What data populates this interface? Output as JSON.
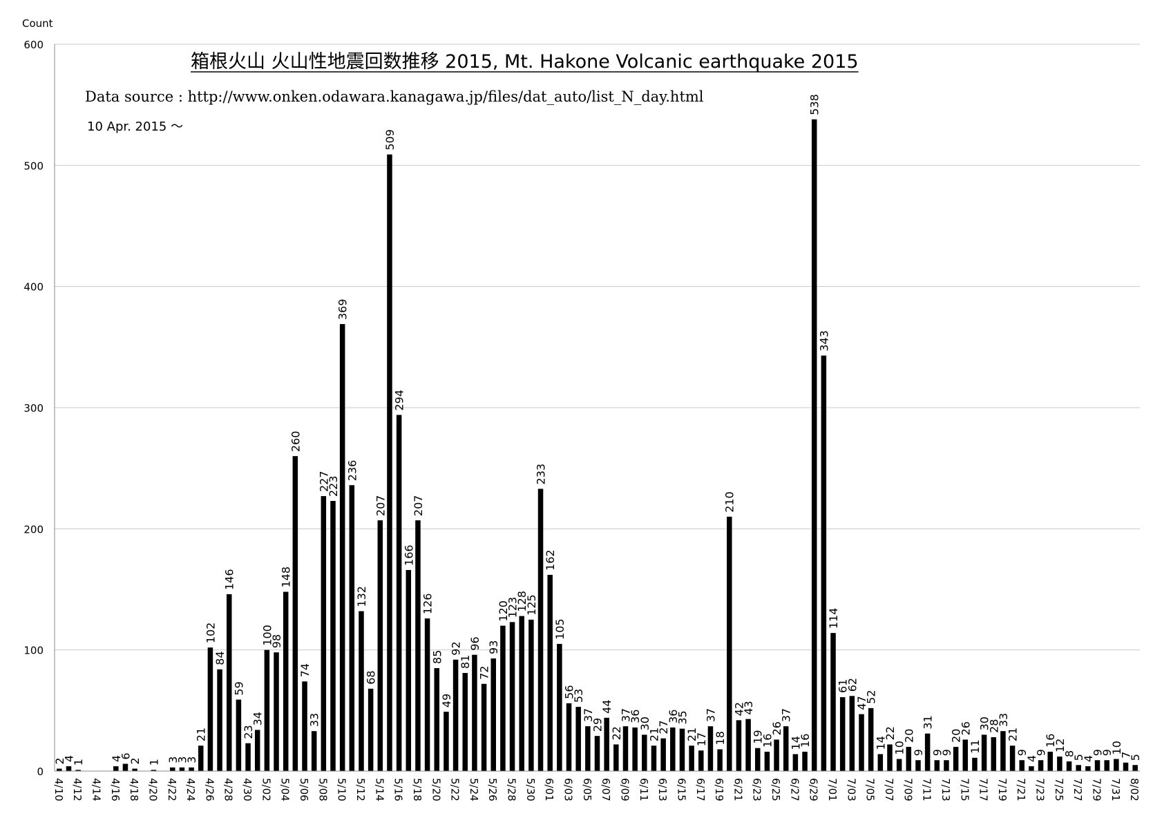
{
  "chart_data": {
    "type": "bar",
    "title": "箱根火山  火山性地震回数推移 2015, Mt. Hakone Volcanic earthquake 2015",
    "source_note": "Data source : http://www.onken.odawara.kanagawa.jp/files/dat_auto/list_N_day.html",
    "date_note": "10 Apr. 2015 ～",
    "ylabel": "Count",
    "xlabel": "",
    "ylim": [
      0,
      600
    ],
    "y_ticks": [
      0,
      100,
      200,
      300,
      400,
      500,
      600
    ],
    "grid": true,
    "bar_color": "#000000",
    "x_tick_labels": [
      "4/10",
      "4/12",
      "4/14",
      "4/16",
      "4/18",
      "4/20",
      "4/22",
      "4/24",
      "4/26",
      "4/28",
      "4/30",
      "5/02",
      "5/04",
      "5/06",
      "5/08",
      "5/10",
      "5/12",
      "5/14",
      "5/16",
      "5/18",
      "5/20",
      "5/22",
      "5/24",
      "5/26",
      "5/28",
      "5/30",
      "6/01",
      "6/03",
      "6/05",
      "6/07",
      "6/09",
      "6/11",
      "6/13",
      "6/15",
      "6/17",
      "6/19",
      "6/21",
      "6/23",
      "6/25",
      "6/27",
      "6/29",
      "7/01",
      "7/03",
      "7/05",
      "7/07",
      "7/09",
      "7/11",
      "7/13",
      "7/15",
      "7/17",
      "7/19",
      "7/21",
      "7/23",
      "7/25",
      "7/27",
      "7/29",
      "7/31",
      "8/02"
    ],
    "values": [
      2,
      4,
      1,
      0,
      0,
      0,
      4,
      6,
      2,
      0,
      1,
      0,
      3,
      3,
      3,
      21,
      102,
      84,
      146,
      59,
      23,
      34,
      100,
      98,
      148,
      260,
      74,
      33,
      227,
      223,
      369,
      236,
      132,
      68,
      207,
      509,
      294,
      166,
      207,
      126,
      85,
      49,
      92,
      81,
      96,
      72,
      93,
      120,
      123,
      128,
      125,
      233,
      162,
      105,
      56,
      53,
      37,
      29,
      44,
      22,
      37,
      36,
      30,
      21,
      27,
      36,
      35,
      21,
      17,
      37,
      18,
      210,
      42,
      43,
      19,
      16,
      26,
      37,
      14,
      16,
      538,
      343,
      114,
      61,
      62,
      47,
      52,
      14,
      22,
      10,
      20,
      9,
      31,
      9,
      9,
      20,
      26,
      11,
      30,
      28,
      33,
      21,
      9,
      4,
      9,
      16,
      12,
      8,
      5,
      4,
      9,
      9,
      10,
      7,
      5
    ],
    "data_labels": [
      "2",
      "4",
      "1",
      "",
      "",
      "",
      "4",
      "6",
      "2",
      "",
      "1",
      "",
      "3",
      "3",
      "3",
      "21",
      "102",
      "84",
      "146",
      "59",
      "23",
      "34",
      "100",
      "98",
      "148",
      "260",
      "74",
      "33",
      "227",
      "223",
      "369",
      "236",
      "132",
      "68",
      "207",
      "509",
      "294",
      "166",
      "207",
      "126",
      "85",
      "49",
      "92",
      "81",
      "96",
      "72",
      "93",
      "120",
      "123",
      "128",
      "125",
      "233",
      "162",
      "105",
      "56",
      "53",
      "37",
      "29",
      "44",
      "22",
      "37",
      "36",
      "30",
      "21",
      "27",
      "36",
      "35",
      "21",
      "17",
      "37",
      "18",
      "210",
      "42",
      "43",
      "19",
      "16",
      "26",
      "37",
      "14",
      "16",
      "538",
      "343",
      "114",
      "61",
      "62",
      "47",
      "52",
      "14",
      "22",
      "10",
      "20",
      "9",
      "31",
      "9",
      "9",
      "20",
      "26",
      "11",
      "30",
      "28",
      "33",
      "21",
      "9",
      "4",
      "9",
      "16",
      "12",
      "8",
      "5",
      "4",
      "9",
      "9",
      "10",
      "7",
      "5"
    ]
  }
}
